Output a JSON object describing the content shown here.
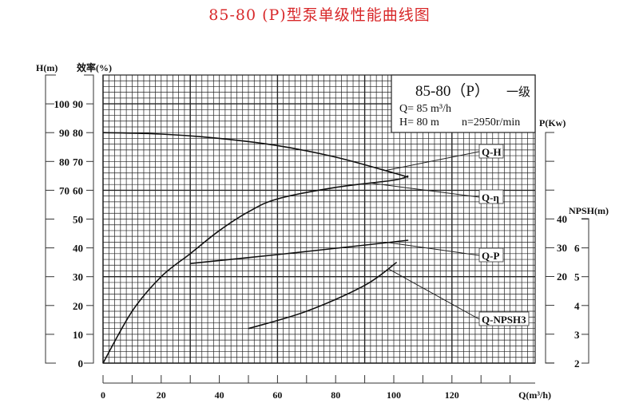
{
  "title": "85-80 (P)型泵单级性能曲线图",
  "info_box": {
    "model": "85-80（P）",
    "stage": "一级",
    "flow": "Q= 85 m³/h",
    "head": "H= 80 m",
    "speed": "n=2950r/min"
  },
  "chart_data": {
    "type": "line",
    "xlabel": "Q(m³/h)",
    "x_ticks": [
      0,
      20,
      40,
      60,
      80,
      100,
      120
    ],
    "xlim": [
      0,
      148
    ],
    "grid": true,
    "axes": {
      "head": {
        "label": "H(m)",
        "ticks": [
          70,
          80,
          90,
          100
        ]
      },
      "efficiency": {
        "label": "效率(%)",
        "ticks": [
          0,
          10,
          20,
          30,
          40,
          50,
          60,
          70,
          80,
          90
        ],
        "ylim": [
          0,
          100
        ]
      },
      "power": {
        "label": "P(Kw)",
        "ticks": [
          20,
          30,
          40
        ]
      },
      "npsh": {
        "label": "NPSH(m)",
        "ticks": [
          2,
          3,
          4,
          5,
          6
        ]
      }
    },
    "series": [
      {
        "name": "Q-H",
        "axis": "head",
        "x": [
          0,
          20,
          40,
          60,
          80,
          100,
          105
        ],
        "y": [
          90,
          89.5,
          88,
          85.5,
          81.5,
          76,
          74.5
        ]
      },
      {
        "name": "Q-η",
        "axis": "efficiency",
        "x": [
          0,
          10,
          20,
          30,
          40,
          50,
          60,
          80,
          100,
          105
        ],
        "y": [
          0,
          18,
          30,
          38,
          46,
          52.5,
          57,
          61,
          63.5,
          65
        ]
      },
      {
        "name": "Q-P",
        "axis": "power",
        "x": [
          30,
          60,
          90,
          105
        ],
        "y": [
          24.4,
          27.5,
          30.8,
          32.5
        ]
      },
      {
        "name": "Q-NPSH3",
        "axis": "npsh",
        "x": [
          50,
          70,
          90,
          101
        ],
        "y": [
          3.2,
          3.8,
          4.7,
          5.5
        ]
      }
    ]
  }
}
